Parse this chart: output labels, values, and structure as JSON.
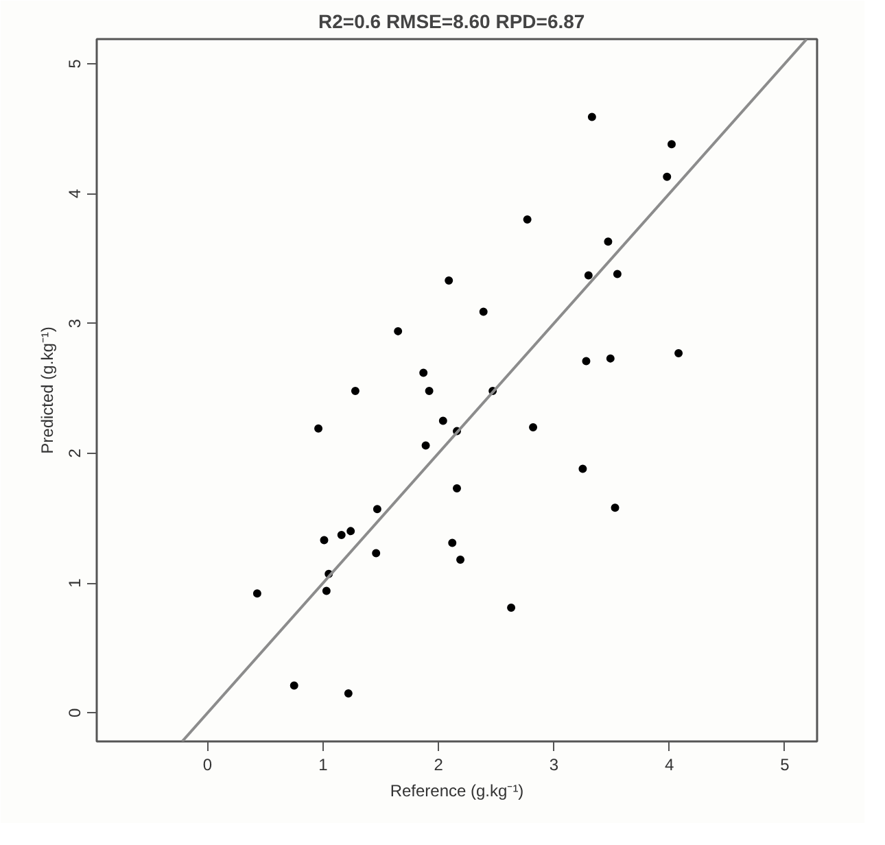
{
  "chart_data": {
    "type": "scatter",
    "title": "R2=0.6   RMSE=8.60 RPD=6.87",
    "xlabel": "Reference (g.kg⁻¹)",
    "ylabel": "Predicted (g.kg⁻¹)",
    "xlim": [
      -0.96,
      5.28
    ],
    "ylim": [
      -0.22,
      5.19
    ],
    "xticks": [
      0,
      1,
      2,
      3,
      4,
      5
    ],
    "yticks": [
      0,
      1,
      2,
      3,
      4,
      5
    ],
    "grid": false,
    "series": [
      {
        "color": "#000000",
        "marker": "circle",
        "x": [
          2.09,
          2.39,
          1.65,
          1.87,
          1.92,
          1.28,
          2.47,
          0.96,
          2.04,
          2.16,
          1.89,
          2.16,
          1.47,
          1.24,
          1.16,
          1.01,
          1.46,
          2.12,
          2.19,
          1.05,
          1.03,
          0.43,
          0.75,
          1.22,
          2.63,
          3.33,
          4.02,
          3.98,
          2.77,
          3.47,
          3.3,
          3.55,
          3.28,
          3.49,
          4.08,
          2.82,
          3.25,
          3.53
        ],
        "values": [
          3.33,
          3.09,
          2.94,
          2.62,
          2.48,
          2.48,
          2.48,
          2.19,
          2.25,
          2.17,
          2.06,
          1.73,
          1.57,
          1.4,
          1.37,
          1.33,
          1.23,
          1.31,
          1.18,
          1.07,
          0.94,
          0.92,
          0.21,
          0.15,
          0.81,
          4.59,
          4.38,
          4.13,
          3.8,
          3.63,
          3.37,
          3.38,
          2.71,
          2.73,
          2.77,
          2.2,
          1.88,
          1.58
        ]
      },
      {
        "type": "line",
        "color": "#8c8c8c",
        "line_style": "solid",
        "x": [
          -0.22,
          5.19
        ],
        "values": [
          -0.22,
          5.19
        ]
      }
    ]
  }
}
